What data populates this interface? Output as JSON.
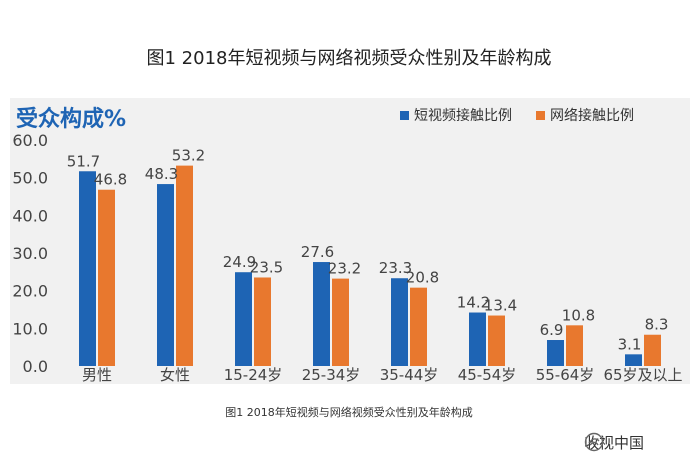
{
  "page": {
    "title": "图1  2018年短视频与网络视频受众性别及年龄构成",
    "caption": "图1  2018年短视频与网络视频受众性别及年龄构成",
    "watermark": "收视中国"
  },
  "chart_data": {
    "type": "bar",
    "title": "受众构成%",
    "categories": [
      "男性",
      "女性",
      "15-24岁",
      "25-34岁",
      "35-44岁",
      "45-54岁",
      "55-64岁",
      "65岁及以上"
    ],
    "series": [
      {
        "name": "短视频接触比例",
        "color": "#1e64b4",
        "values": [
          51.7,
          48.3,
          24.9,
          27.6,
          23.3,
          14.2,
          6.9,
          3.1
        ]
      },
      {
        "name": "网络接触比例",
        "color": "#e8782e",
        "values": [
          46.8,
          53.2,
          23.5,
          23.2,
          20.8,
          13.4,
          10.8,
          8.3
        ]
      }
    ],
    "yticks": [
      "0.0",
      "10.0",
      "20.0",
      "30.0",
      "40.0",
      "50.0",
      "60.0"
    ],
    "ylim": [
      0,
      60
    ],
    "grid": false,
    "legend_position": "top-right"
  }
}
